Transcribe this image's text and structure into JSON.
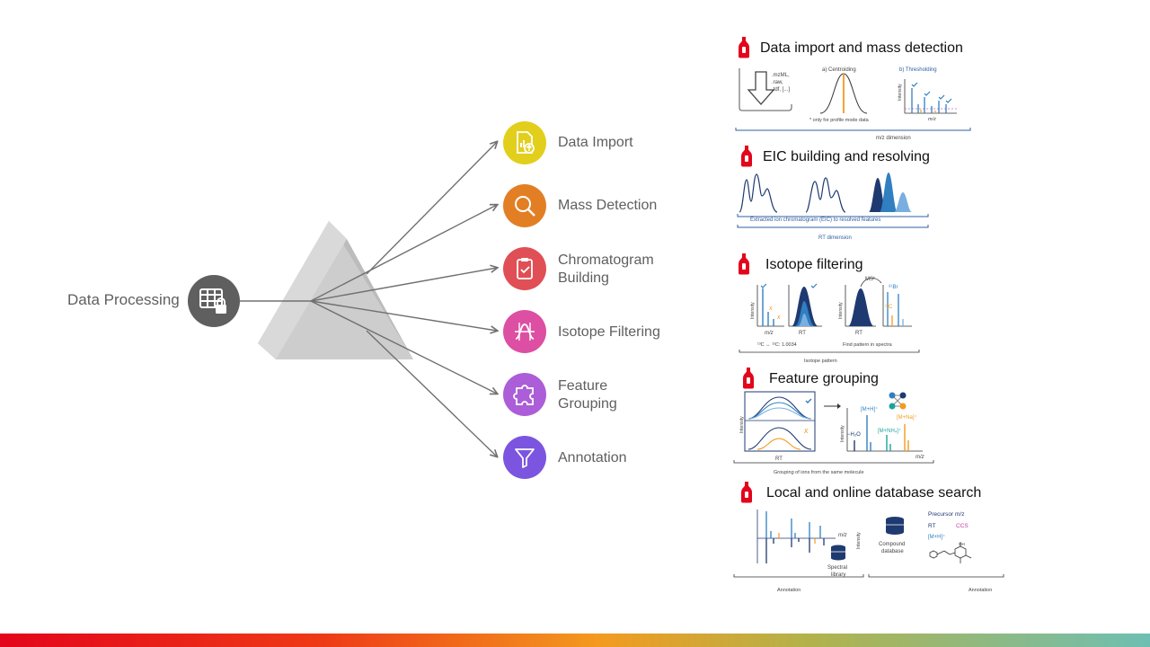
{
  "hub": {
    "label": "Data Processing",
    "icon": "table-lock-icon",
    "color": "#5f5f5f"
  },
  "steps": [
    {
      "label": "Data Import",
      "color": "#e2cf1b",
      "icon": "file-chart-upload-icon"
    },
    {
      "label": "Mass Detection",
      "color": "#e27f25",
      "icon": "magnifier-icon"
    },
    {
      "label": "Chromatogram Building",
      "color": "#e04f55",
      "icon": "clipboard-check-icon"
    },
    {
      "label": "Isotope Filtering",
      "color": "#dc4fa2",
      "icon": "curve-arrows-icon"
    },
    {
      "label": "Feature Grouping",
      "color": "#ab5ed8",
      "icon": "puzzle-icon"
    },
    {
      "label": "Annotation",
      "color": "#7b55e0",
      "icon": "funnel-icon"
    }
  ],
  "panels": [
    {
      "title": "Data import and mass detection",
      "formats": [
        ".mzML,",
        ".raw,",
        ".tdf, [...]"
      ],
      "centroiding": "a) Centroiding",
      "centroid_note": "* only for profile mode data",
      "thresholding": "b) Thresholding",
      "intensity": "Intensity",
      "mz": "m/z",
      "dimension": "m/z dimension"
    },
    {
      "title": "EIC building and resolving",
      "caption": "Extracted ion chromatogram (EIC) to resolved features",
      "dimension": "RT dimension"
    },
    {
      "title": "Isotope filtering",
      "intensity": "Intensity",
      "mz": "m/z",
      "rt": "RT",
      "ms1": "MS¹",
      "br81": "⁸¹Br",
      "c13": "¹³C",
      "delta": "¹³C ↔ ¹²C: 1.0034",
      "find": "Find pattern in spectra",
      "caption": "Isotope pattern"
    },
    {
      "title": "Feature grouping",
      "intensity": "Intensity",
      "rt": "RT",
      "mz": "m/z",
      "mh": "[M+H]⁺",
      "mna": "[M+Na]⁺",
      "mnh4": "[M+NH₄]⁺",
      "h2o": "−H₂O",
      "caption": "Grouping of ions from the same molecule"
    },
    {
      "title": "Local and online database search",
      "mz": "m/z",
      "intensity": "Intensity",
      "spectral_1": "Spectral",
      "spectral_2": "library",
      "compound_1": "Compound",
      "compound_2": "database",
      "precursor": "Precursor m/z",
      "rt": "RT",
      "ccs": "CCS",
      "mh": "[M+H]⁺",
      "annotation_left": "Annotation",
      "annotation_right": "Annotation"
    }
  ],
  "colors": {
    "bottle": "#e3051b",
    "chart_blue": "#2f7fc1",
    "chart_navy": "#1f3a70",
    "chart_orange": "#f39a1f",
    "prism": "#cfcfcf",
    "arrow": "#707070",
    "teal": "#1aa39b"
  }
}
